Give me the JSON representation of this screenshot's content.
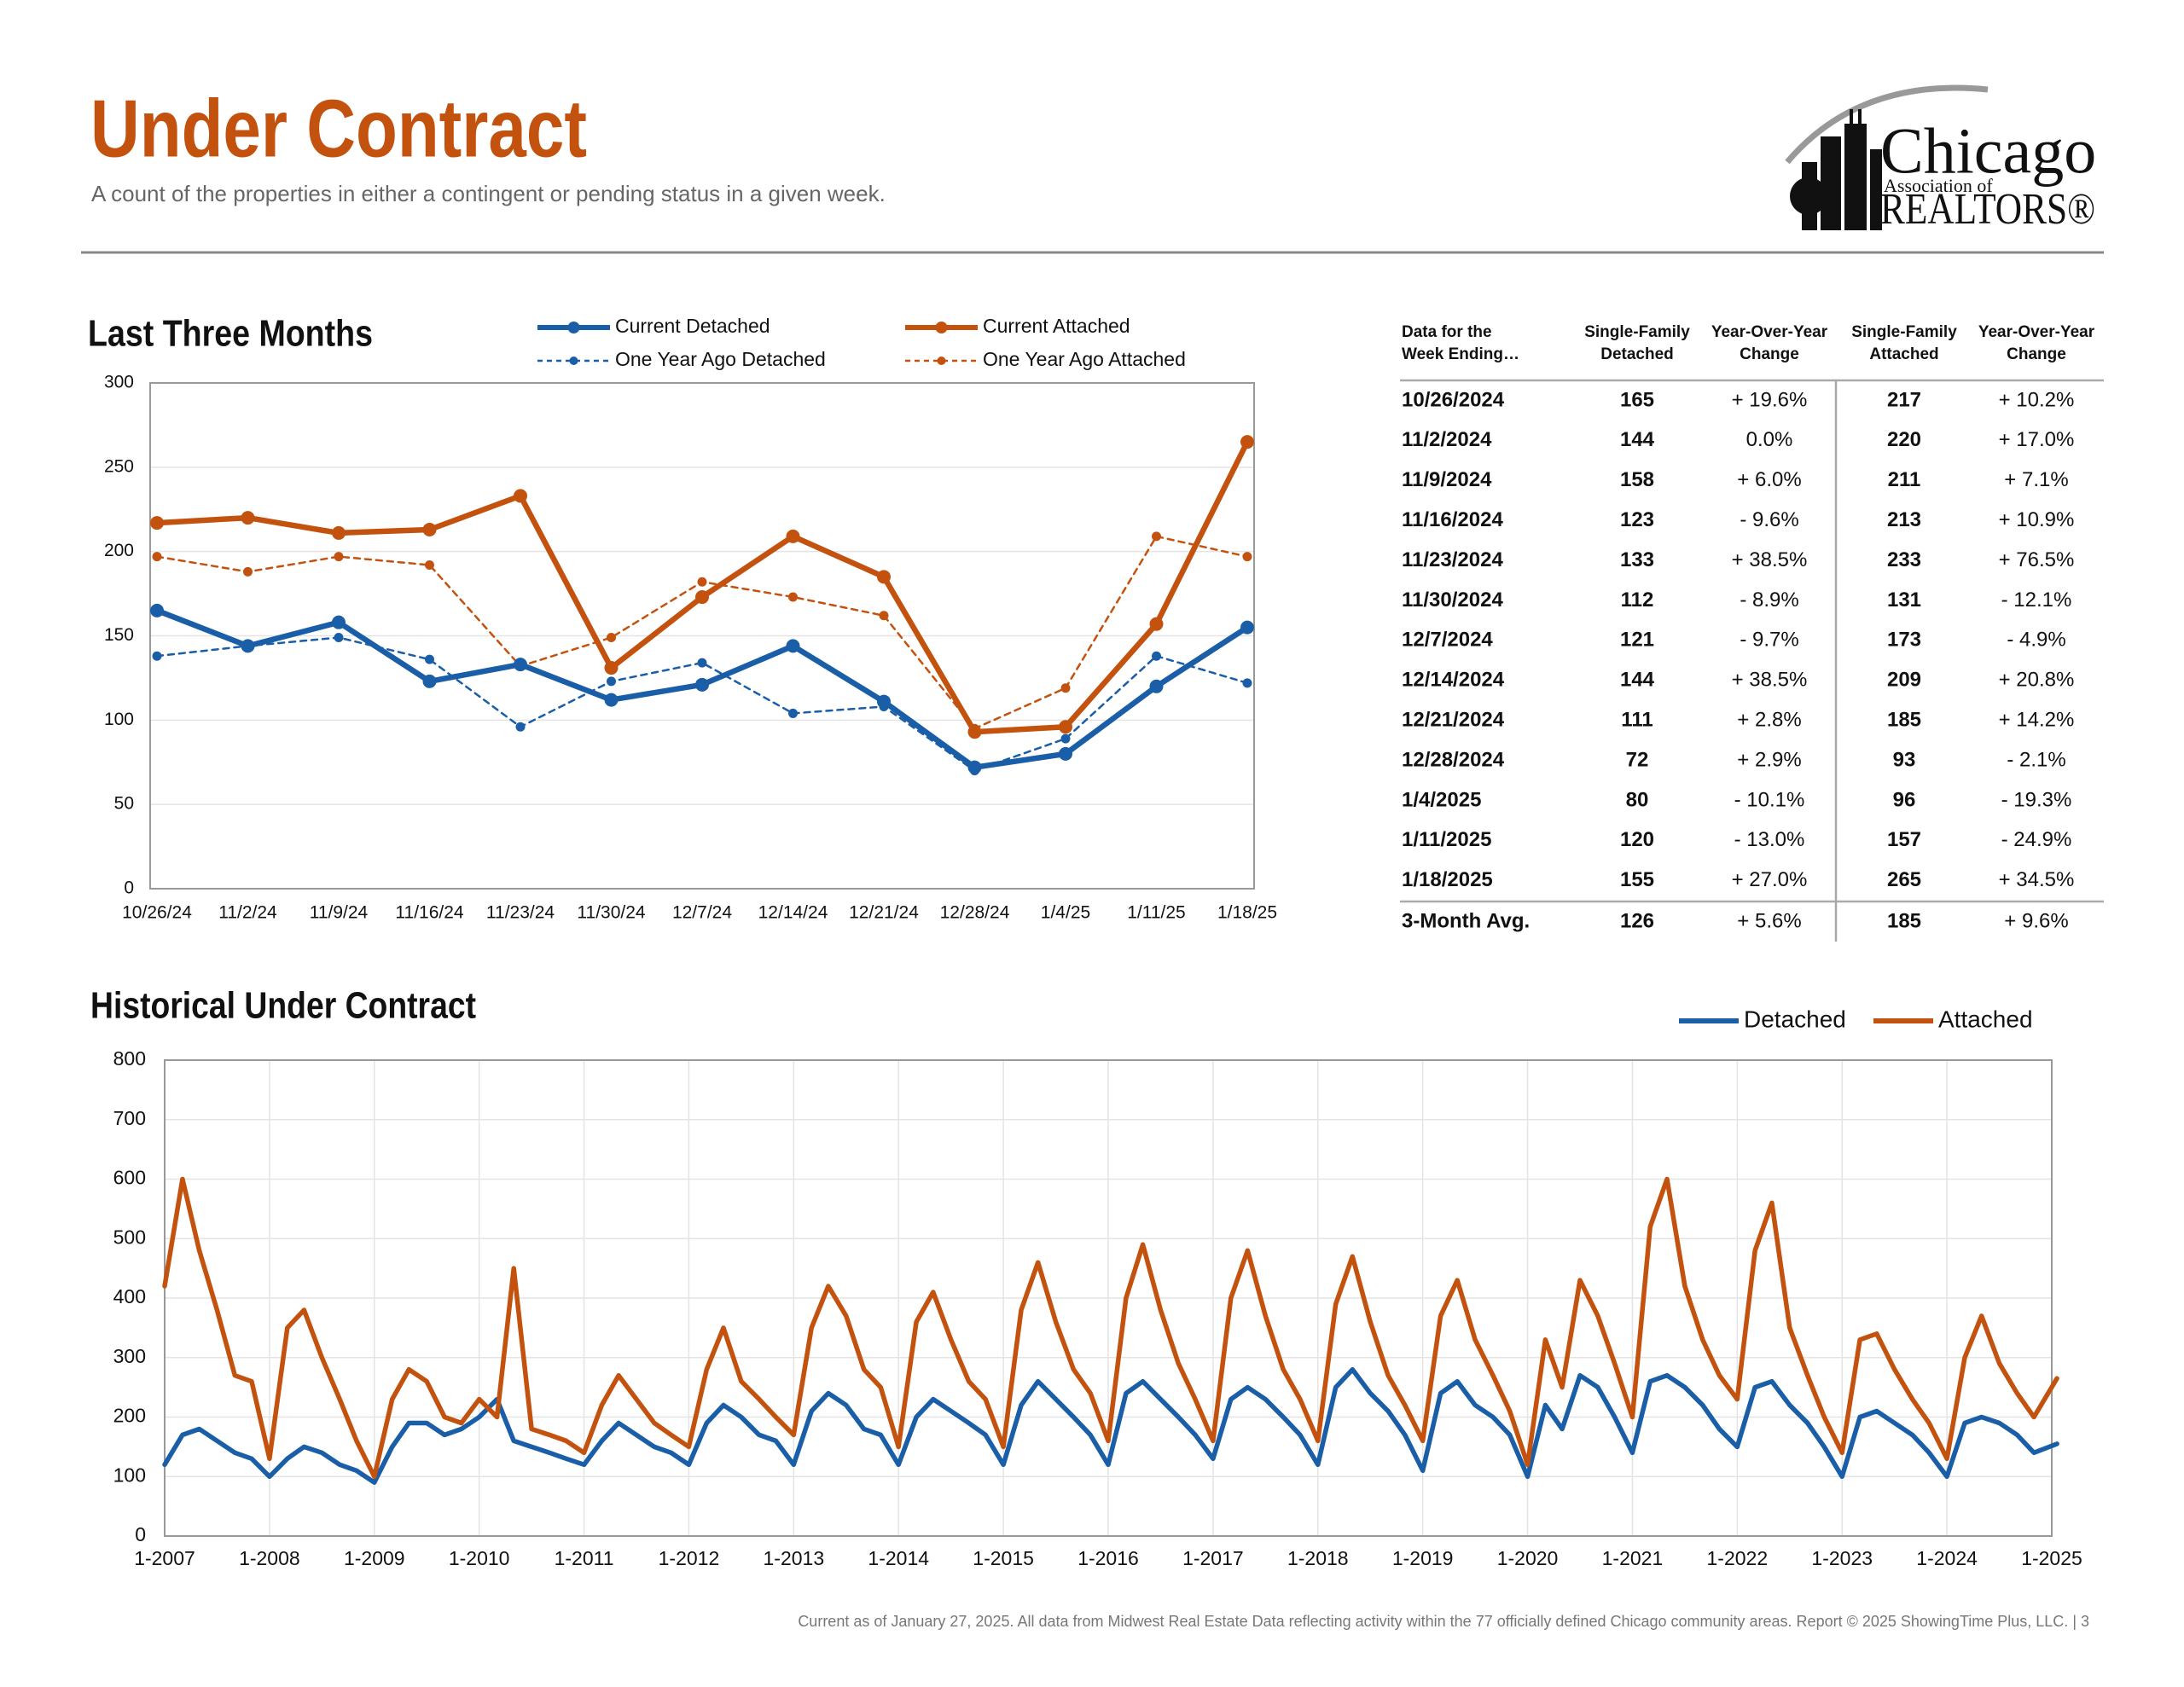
{
  "header": {
    "title": "Under Contract",
    "subtitle": "A count of the properties in either a contingent or pending status in a given week.",
    "logo": [
      "Chicago",
      "Association of",
      "REALTORS®"
    ]
  },
  "chart_data": [
    {
      "type": "line",
      "title": "Last Three Months",
      "categories": [
        "10/26/24",
        "11/2/24",
        "11/9/24",
        "11/16/24",
        "11/23/24",
        "11/30/24",
        "12/7/24",
        "12/14/24",
        "12/21/24",
        "12/28/24",
        "1/4/25",
        "1/11/25",
        "1/18/25"
      ],
      "series": [
        {
          "name": "Current Detached",
          "color": "#1a5ea8",
          "line_style": "solid",
          "markers": true,
          "values": [
            165,
            144,
            158,
            123,
            133,
            112,
            121,
            144,
            111,
            72,
            80,
            120,
            155
          ]
        },
        {
          "name": "Current Attached",
          "color": "#c4520f",
          "line_style": "solid",
          "markers": true,
          "values": [
            217,
            220,
            211,
            213,
            233,
            131,
            173,
            209,
            185,
            93,
            96,
            157,
            265
          ]
        },
        {
          "name": "One Year Ago Detached",
          "color": "#1a5ea8",
          "line_style": "dashed",
          "markers": true,
          "values": [
            138,
            144,
            149,
            136,
            96,
            123,
            134,
            104,
            108,
            70,
            89,
            138,
            122
          ]
        },
        {
          "name": "One Year Ago Attached",
          "color": "#c4520f",
          "line_style": "dashed",
          "markers": true,
          "values": [
            197,
            188,
            197,
            192,
            132,
            149,
            182,
            173,
            162,
            95,
            119,
            209,
            197
          ]
        }
      ],
      "ylim": [
        0,
        300
      ],
      "yticks": [
        0,
        50,
        100,
        150,
        200,
        250,
        300
      ],
      "grid": true
    },
    {
      "type": "line",
      "title": "Historical Under Contract",
      "x": [
        2007,
        2007.17,
        2007.33,
        2007.5,
        2007.67,
        2007.83,
        2008,
        2008.17,
        2008.33,
        2008.5,
        2008.67,
        2008.83,
        2009,
        2009.17,
        2009.33,
        2009.5,
        2009.67,
        2009.83,
        2010,
        2010.17,
        2010.33,
        2010.5,
        2010.67,
        2010.83,
        2011,
        2011.17,
        2011.33,
        2011.5,
        2011.67,
        2011.83,
        2012,
        2012.17,
        2012.33,
        2012.5,
        2012.67,
        2012.83,
        2013,
        2013.17,
        2013.33,
        2013.5,
        2013.67,
        2013.83,
        2014,
        2014.17,
        2014.33,
        2014.5,
        2014.67,
        2014.83,
        2015,
        2015.17,
        2015.33,
        2015.5,
        2015.67,
        2015.83,
        2016,
        2016.17,
        2016.33,
        2016.5,
        2016.67,
        2016.83,
        2017,
        2017.17,
        2017.33,
        2017.5,
        2017.67,
        2017.83,
        2018,
        2018.17,
        2018.33,
        2018.5,
        2018.67,
        2018.83,
        2019,
        2019.17,
        2019.33,
        2019.5,
        2019.67,
        2019.83,
        2020,
        2020.17,
        2020.33,
        2020.5,
        2020.67,
        2020.83,
        2021,
        2021.17,
        2021.33,
        2021.5,
        2021.67,
        2021.83,
        2022,
        2022.17,
        2022.33,
        2022.5,
        2022.67,
        2022.83,
        2023,
        2023.17,
        2023.33,
        2023.5,
        2023.67,
        2023.83,
        2024,
        2024.17,
        2024.33,
        2024.5,
        2024.67,
        2024.83,
        2025.05
      ],
      "series": [
        {
          "name": "Detached",
          "color": "#1a5ea8",
          "line_style": "solid",
          "markers": false,
          "values": [
            120,
            170,
            180,
            160,
            140,
            130,
            100,
            130,
            150,
            140,
            120,
            110,
            90,
            150,
            190,
            190,
            170,
            180,
            200,
            230,
            160,
            150,
            140,
            130,
            120,
            160,
            190,
            170,
            150,
            140,
            120,
            190,
            220,
            200,
            170,
            160,
            120,
            210,
            240,
            220,
            180,
            170,
            120,
            200,
            230,
            210,
            190,
            170,
            120,
            220,
            260,
            230,
            200,
            170,
            120,
            240,
            260,
            230,
            200,
            170,
            130,
            230,
            250,
            230,
            200,
            170,
            120,
            250,
            280,
            240,
            210,
            170,
            110,
            240,
            260,
            220,
            200,
            170,
            100,
            220,
            180,
            270,
            250,
            200,
            140,
            260,
            270,
            250,
            220,
            180,
            150,
            250,
            260,
            220,
            190,
            150,
            100,
            200,
            210,
            190,
            170,
            140,
            100,
            190,
            200,
            190,
            170,
            140,
            155
          ]
        },
        {
          "name": "Attached",
          "color": "#c4520f",
          "line_style": "solid",
          "markers": false,
          "values": [
            420,
            600,
            480,
            380,
            270,
            260,
            130,
            350,
            380,
            300,
            230,
            160,
            100,
            230,
            280,
            260,
            200,
            190,
            230,
            200,
            450,
            180,
            170,
            160,
            140,
            220,
            270,
            230,
            190,
            170,
            150,
            280,
            350,
            260,
            230,
            200,
            170,
            350,
            420,
            370,
            280,
            250,
            150,
            360,
            410,
            330,
            260,
            230,
            150,
            380,
            460,
            360,
            280,
            240,
            160,
            400,
            490,
            380,
            290,
            230,
            160,
            400,
            480,
            370,
            280,
            230,
            160,
            390,
            470,
            360,
            270,
            220,
            160,
            370,
            430,
            330,
            270,
            210,
            120,
            330,
            250,
            430,
            370,
            290,
            200,
            520,
            600,
            420,
            330,
            270,
            230,
            480,
            560,
            350,
            270,
            200,
            140,
            330,
            340,
            280,
            230,
            190,
            130,
            300,
            370,
            290,
            240,
            200,
            265
          ]
        }
      ],
      "xlim": [
        2007,
        2025
      ],
      "xticks": [
        {
          "value": 2007,
          "label": "1-2007"
        },
        {
          "value": 2008,
          "label": "1-2008"
        },
        {
          "value": 2009,
          "label": "1-2009"
        },
        {
          "value": 2010,
          "label": "1-2010"
        },
        {
          "value": 2011,
          "label": "1-2011"
        },
        {
          "value": 2012,
          "label": "1-2012"
        },
        {
          "value": 2013,
          "label": "1-2013"
        },
        {
          "value": 2014,
          "label": "1-2014"
        },
        {
          "value": 2015,
          "label": "1-2015"
        },
        {
          "value": 2016,
          "label": "1-2016"
        },
        {
          "value": 2017,
          "label": "1-2017"
        },
        {
          "value": 2018,
          "label": "1-2018"
        },
        {
          "value": 2019,
          "label": "1-2019"
        },
        {
          "value": 2020,
          "label": "1-2020"
        },
        {
          "value": 2021,
          "label": "1-2021"
        },
        {
          "value": 2022,
          "label": "1-2022"
        },
        {
          "value": 2023,
          "label": "1-2023"
        },
        {
          "value": 2024,
          "label": "1-2024"
        },
        {
          "value": 2025,
          "label": "1-2025"
        }
      ],
      "ylim": [
        0,
        800
      ],
      "yticks": [
        0,
        100,
        200,
        300,
        400,
        500,
        600,
        700,
        800
      ],
      "grid": true
    }
  ],
  "table": {
    "header": [
      [
        "Data for the",
        "Week Ending…"
      ],
      [
        "Single-Family",
        "Detached"
      ],
      [
        "Year-Over-Year",
        "Change"
      ],
      [
        "Single-Family",
        "Attached"
      ],
      [
        "Year-Over-Year",
        "Change"
      ]
    ],
    "rows": [
      [
        "10/26/2024",
        "165",
        "+ 19.6%",
        "217",
        "+ 10.2%"
      ],
      [
        "11/2/2024",
        "144",
        "0.0%",
        "220",
        "+ 17.0%"
      ],
      [
        "11/9/2024",
        "158",
        "+ 6.0%",
        "211",
        "+ 7.1%"
      ],
      [
        "11/16/2024",
        "123",
        "- 9.6%",
        "213",
        "+ 10.9%"
      ],
      [
        "11/23/2024",
        "133",
        "+ 38.5%",
        "233",
        "+ 76.5%"
      ],
      [
        "11/30/2024",
        "112",
        "- 8.9%",
        "131",
        "- 12.1%"
      ],
      [
        "12/7/2024",
        "121",
        "- 9.7%",
        "173",
        "- 4.9%"
      ],
      [
        "12/14/2024",
        "144",
        "+ 38.5%",
        "209",
        "+ 20.8%"
      ],
      [
        "12/21/2024",
        "111",
        "+ 2.8%",
        "185",
        "+ 14.2%"
      ],
      [
        "12/28/2024",
        "72",
        "+ 2.9%",
        "93",
        "- 2.1%"
      ],
      [
        "1/4/2025",
        "80",
        "- 10.1%",
        "96",
        "- 19.3%"
      ],
      [
        "1/11/2025",
        "120",
        "- 13.0%",
        "157",
        "- 24.9%"
      ],
      [
        "1/18/2025",
        "155",
        "+ 27.0%",
        "265",
        "+ 34.5%"
      ]
    ],
    "average": [
      "3-Month Avg.",
      "126",
      "+ 5.6%",
      "185",
      "+ 9.6%"
    ]
  },
  "footer": "Current as of January 27, 2025.  All data from Midwest Real Estate Data reflecting activity within the 77 officially defined Chicago community areas. Report © 2025 ShowingTime Plus, LLC.  |  3"
}
